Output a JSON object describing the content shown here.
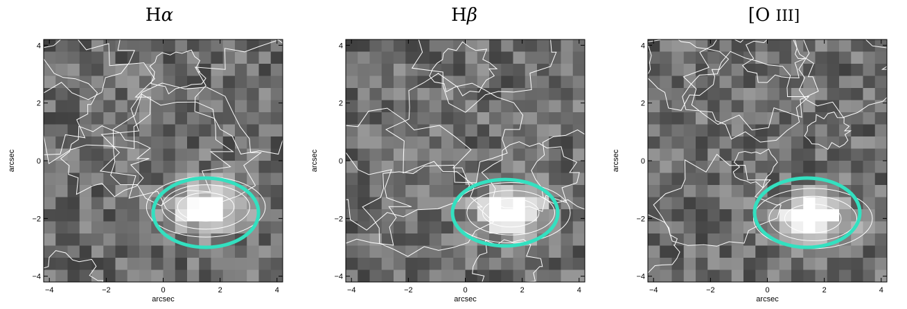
{
  "chart_data": [
    {
      "type": "heatmap",
      "title_main": "H",
      "title_greek": "α",
      "xlabel": "arcsec",
      "ylabel": "arcsec",
      "xlim": [
        -4.2,
        4.2
      ],
      "ylim": [
        -4.2,
        4.2
      ],
      "xticks": [
        "−4",
        "−2",
        "0",
        "2",
        "4"
      ],
      "yticks": [
        "4",
        "2",
        "0",
        "−2",
        "−4"
      ],
      "ellipse": {
        "cx": 1.5,
        "cy": -1.8,
        "rx": 1.85,
        "ry": 1.2,
        "color": "#33e0c0"
      },
      "bright_blob": {
        "x": 1.5,
        "y": -1.6
      },
      "seed": 11
    },
    {
      "type": "heatmap",
      "title_main": "H",
      "title_greek": "β",
      "xlabel": "arcsec",
      "ylabel": "arcsec",
      "xlim": [
        -4.2,
        4.2
      ],
      "ylim": [
        -4.2,
        4.2
      ],
      "xticks": [
        "−4",
        "−2",
        "0",
        "2",
        "4"
      ],
      "yticks": [
        "4",
        "2",
        "0",
        "−2",
        "−4"
      ],
      "ellipse": {
        "cx": 1.4,
        "cy": -1.8,
        "rx": 1.85,
        "ry": 1.15,
        "color": "#33e0c0"
      },
      "bright_blob": {
        "x": 1.6,
        "y": -1.8
      },
      "seed": 23
    },
    {
      "type": "heatmap",
      "title_main": "[O ",
      "title_greek": "III]",
      "xlabel": "arcsec",
      "ylabel": "arcsec",
      "xlim": [
        -4.2,
        4.2
      ],
      "ylim": [
        -4.2,
        4.2
      ],
      "xticks": [
        "−4",
        "−2",
        "0",
        "2",
        "4"
      ],
      "yticks": [
        "4",
        "2",
        "0",
        "−2",
        "−4"
      ],
      "ellipse": {
        "cx": 1.4,
        "cy": -1.8,
        "rx": 1.85,
        "ry": 1.2,
        "color": "#33e0c0"
      },
      "bright_blob": {
        "x": 1.6,
        "y": -2.0
      },
      "seed": 37
    }
  ],
  "colors": {
    "ellipse": "#33e0c0",
    "contour": "#ffffff",
    "axis": "#000000"
  }
}
